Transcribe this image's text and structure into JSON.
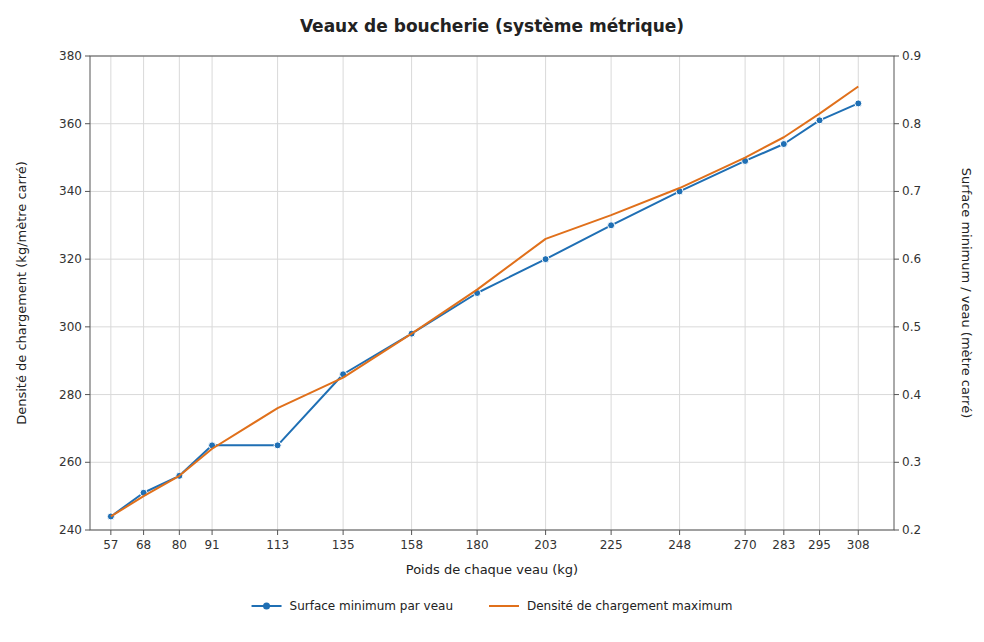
{
  "chart_data": {
    "type": "line",
    "title": "Veaux de boucherie (système métrique)",
    "x_label": "Poids de chaque veau (kg)",
    "y_label": "Densité de chargement (kg/mètre carré)",
    "y2_label": "Surface minimum / veau (mètre carré)",
    "x": [
      57,
      68,
      80,
      91,
      113,
      135,
      158,
      180,
      203,
      225,
      248,
      270,
      283,
      295,
      308
    ],
    "series": [
      {
        "name": "Surface minimum par veau",
        "marker": "circle",
        "values": [
          244,
          251,
          256,
          265,
          265,
          286,
          298,
          310,
          320,
          330,
          340,
          349,
          354,
          361,
          366
        ]
      },
      {
        "name": "Densité de chargement maximum",
        "marker": "none",
        "values": [
          244,
          250,
          256,
          264,
          276,
          285,
          298,
          311,
          326,
          333,
          341,
          350,
          356,
          363,
          371
        ]
      }
    ],
    "xlim": [
      50,
      320
    ],
    "xticks": [
      57,
      68,
      80,
      91,
      113,
      135,
      158,
      180,
      203,
      225,
      248,
      270,
      283,
      295,
      308
    ],
    "ylim": [
      240,
      380
    ],
    "yticks": [
      240,
      260,
      280,
      300,
      320,
      340,
      360,
      380
    ],
    "y2lim": [
      0.2,
      0.9
    ],
    "y2ticks": [
      0.2,
      0.3,
      0.4,
      0.5,
      0.6,
      0.7,
      0.8,
      0.9
    ],
    "grid": true,
    "legend": "bottom"
  }
}
